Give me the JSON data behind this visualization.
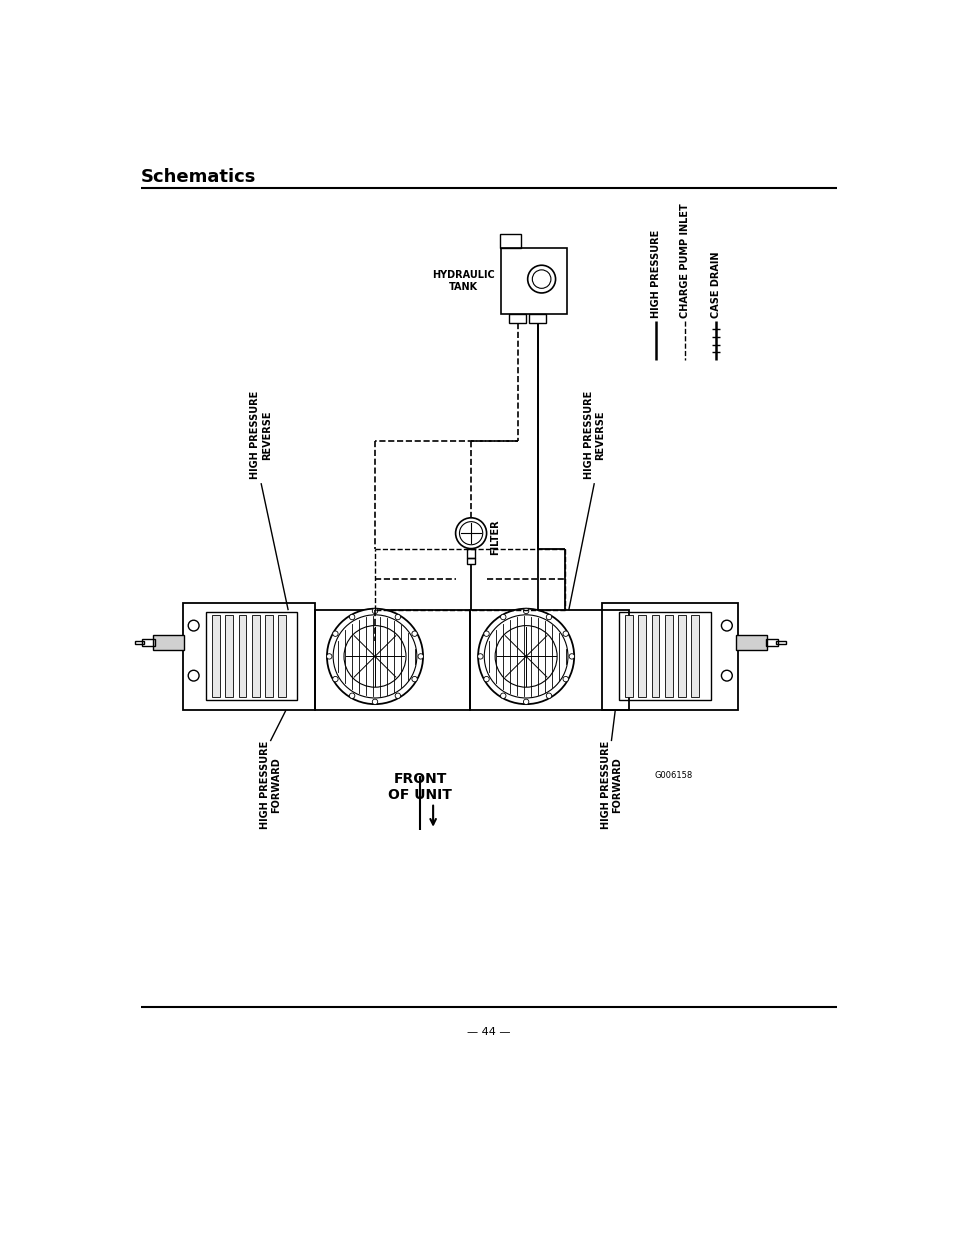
{
  "title": "Schematics",
  "page_number": "44",
  "bg_color": "#ffffff",
  "line_color": "#000000",
  "title_fontsize": 13,
  "body_fontsize": 7,
  "labels": {
    "high_pressure_reverse_left": "HIGH PRESSURE\nREVERSE",
    "high_pressure_forward_left": "HIGH PRESSURE\nFORWARD",
    "high_pressure_reverse_right": "HIGH PRESSURE\nREVERSE",
    "high_pressure_forward_right": "HIGH PRESSURE\nFORWARD",
    "filter": "FILTER",
    "hydraulic_tank": "HYDRAULIC\nTANK",
    "high_pressure_line": "HIGH PRESSURE",
    "charge_pump_inlet": "CHARGE PUMP INLET",
    "case_drain": "CASE DRAIN",
    "front_of_unit": "FRONT\nOF UNIT",
    "part_number": "G006158"
  }
}
